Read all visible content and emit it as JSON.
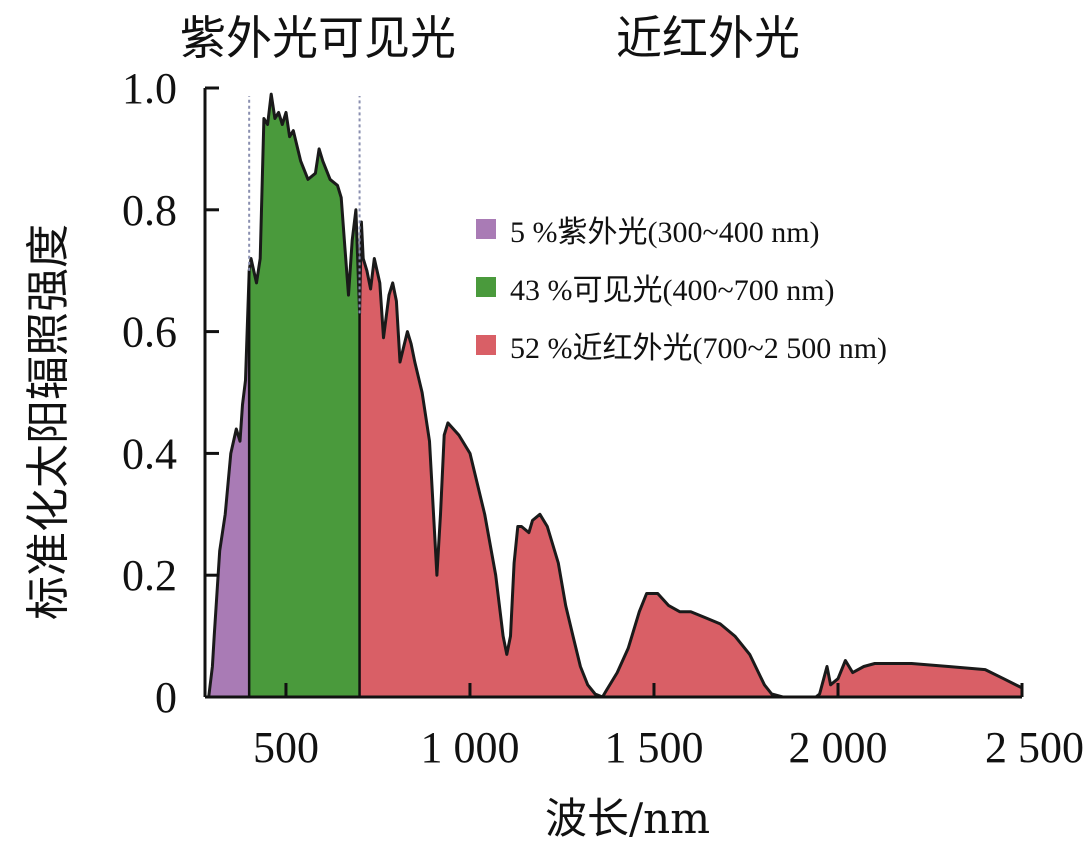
{
  "band_labels": {
    "uv_visible": "紫外光可见光",
    "nir": "近红外光"
  },
  "chart_data": {
    "type": "area",
    "title": "",
    "xlabel": "波长/nm",
    "ylabel": "标准化太阳辐照强度",
    "xlim": [
      280,
      2500
    ],
    "ylim": [
      0,
      1.0
    ],
    "xticks": [
      500,
      1000,
      1500,
      2000,
      2500
    ],
    "xtick_labels": [
      "500",
      "1 000",
      "1 500",
      "2 000",
      "2 500"
    ],
    "yticks": [
      0,
      0.2,
      0.4,
      0.6,
      0.8,
      1.0
    ],
    "ytick_labels": [
      "0",
      "0.2",
      "0.4",
      "0.6",
      "0.8",
      "1.0"
    ],
    "boundaries": [
      400,
      700
    ],
    "x": [
      290,
      300,
      305,
      320,
      335,
      350,
      365,
      375,
      382,
      390,
      400,
      405,
      420,
      430,
      440,
      450,
      460,
      470,
      480,
      490,
      500,
      510,
      520,
      540,
      560,
      580,
      590,
      600,
      620,
      640,
      650,
      660,
      670,
      680,
      690,
      700,
      705,
      710,
      720,
      730,
      740,
      755,
      765,
      780,
      790,
      800,
      810,
      830,
      840,
      850,
      870,
      890,
      910,
      920,
      930,
      940,
      970,
      1000,
      1040,
      1070,
      1090,
      1100,
      1110,
      1120,
      1130,
      1140,
      1160,
      1170,
      1190,
      1210,
      1240,
      1260,
      1280,
      1300,
      1320,
      1340,
      1360,
      1370,
      1400,
      1430,
      1460,
      1480,
      1510,
      1540,
      1570,
      1600,
      1640,
      1680,
      1720,
      1760,
      1800,
      1820,
      1850,
      1870,
      1900,
      1940,
      1950,
      1970,
      1980,
      2000,
      2020,
      2040,
      2070,
      2100,
      2200,
      2300,
      2400,
      2450,
      2500
    ],
    "y": [
      0.0,
      0.05,
      0.1,
      0.24,
      0.3,
      0.4,
      0.44,
      0.42,
      0.48,
      0.52,
      0.7,
      0.72,
      0.68,
      0.72,
      0.95,
      0.94,
      0.99,
      0.95,
      0.96,
      0.94,
      0.96,
      0.92,
      0.93,
      0.88,
      0.85,
      0.86,
      0.9,
      0.88,
      0.85,
      0.84,
      0.82,
      0.74,
      0.66,
      0.75,
      0.8,
      0.63,
      0.78,
      0.72,
      0.7,
      0.67,
      0.72,
      0.68,
      0.59,
      0.66,
      0.68,
      0.65,
      0.55,
      0.6,
      0.58,
      0.55,
      0.5,
      0.42,
      0.2,
      0.3,
      0.43,
      0.45,
      0.43,
      0.4,
      0.3,
      0.2,
      0.1,
      0.07,
      0.1,
      0.22,
      0.28,
      0.28,
      0.27,
      0.29,
      0.3,
      0.28,
      0.22,
      0.15,
      0.1,
      0.05,
      0.02,
      0.005,
      0.0,
      0.01,
      0.04,
      0.08,
      0.14,
      0.17,
      0.17,
      0.15,
      0.14,
      0.14,
      0.13,
      0.12,
      0.1,
      0.07,
      0.02,
      0.005,
      0.0,
      0.0,
      0.0,
      0.0,
      0.005,
      0.05,
      0.02,
      0.03,
      0.06,
      0.04,
      0.05,
      0.055,
      0.055,
      0.05,
      0.045,
      0.03,
      0.015
    ],
    "series": [
      {
        "name": "5 %紫外光(300~400 nm)",
        "range": [
          280,
          400
        ],
        "color": "#a97bb5"
      },
      {
        "name": "43 %可见光(400~700 nm)",
        "range": [
          400,
          700
        ],
        "color": "#4a9a3c"
      },
      {
        "name": "52 %近红外光(700~2 500 nm)",
        "range": [
          700,
          2500
        ],
        "color": "#d95f66"
      }
    ],
    "legend_position": "top-right",
    "grid": false
  }
}
